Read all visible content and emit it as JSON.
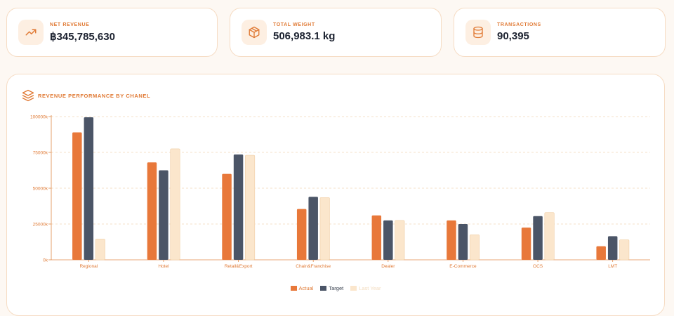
{
  "kpis": [
    {
      "label": "NET REVENUE",
      "value": "฿345,785,630",
      "icon": "trending-up-icon"
    },
    {
      "label": "TOTAL WEIGHT",
      "value": "506,983.1 kg",
      "icon": "box-icon"
    },
    {
      "label": "TRANSACTIONS",
      "value": "90,395",
      "icon": "database-icon"
    }
  ],
  "panel": {
    "title": "REVENUE PERFORMANCE BY CHANEL",
    "icon": "layers-icon"
  },
  "colors": {
    "actual": "#e8783a",
    "target": "#4b5567",
    "last_year": "#fbe6cc",
    "last_year_stroke": "#f0cfa6",
    "axis": "#e08a4a",
    "grid": "#f3d8b8",
    "accent": "#e07a35"
  },
  "chart_data": {
    "type": "bar",
    "title": "REVENUE PERFORMANCE BY CHANEL",
    "categories": [
      "Regional",
      "Hotel",
      "Retail&Export",
      "Chain&Franchise",
      "Dealer",
      "E-Commerce",
      "OCS",
      "LMT"
    ],
    "series": [
      {
        "name": "Actual",
        "values": [
          89000,
          68000,
          60000,
          35500,
          31000,
          27500,
          22500,
          9500
        ]
      },
      {
        "name": "Target",
        "values": [
          99500,
          62500,
          73500,
          44000,
          27500,
          25000,
          30500,
          16500
        ]
      },
      {
        "name": "Last Year",
        "values": [
          14500,
          77500,
          73000,
          43500,
          27500,
          17500,
          33000,
          14000
        ]
      }
    ],
    "yticks": [
      "0k",
      "25000k",
      "50000k",
      "75000k",
      "100000k"
    ],
    "ytick_values": [
      0,
      25000,
      50000,
      75000,
      100000
    ],
    "ylim": [
      0,
      100000
    ],
    "grid": true,
    "legend": "bottom-center"
  }
}
